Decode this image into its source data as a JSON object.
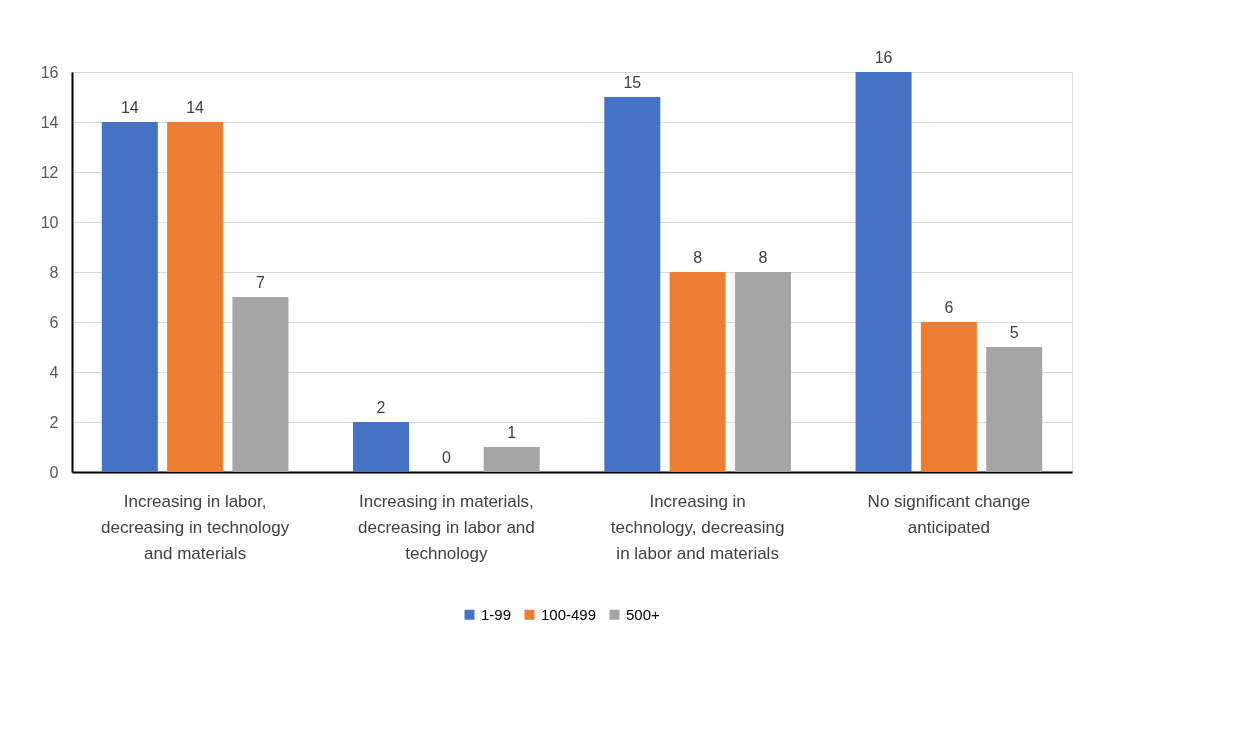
{
  "chart_data": {
    "type": "bar",
    "categories": [
      "Increasing in labor, decreasing in technology and materials",
      "Increasing in materials, decreasing in labor and technology",
      "Increasing in technology, decreasing in labor and materials",
      "No significant change anticipated"
    ],
    "series": [
      {
        "name": "1-99",
        "color": "#4472c4",
        "values": [
          14,
          2,
          15,
          16
        ]
      },
      {
        "name": "100-499",
        "color": "#ed7d31",
        "values": [
          14,
          0,
          8,
          6
        ]
      },
      {
        "name": "500+",
        "color": "#a5a5a5",
        "values": [
          7,
          1,
          8,
          5
        ]
      }
    ],
    "ylim": [
      0,
      16
    ],
    "yticks": [
      0,
      2,
      4,
      6,
      8,
      10,
      12,
      14,
      16
    ],
    "grid": "y",
    "legend": "bottom",
    "data_labels": true
  }
}
